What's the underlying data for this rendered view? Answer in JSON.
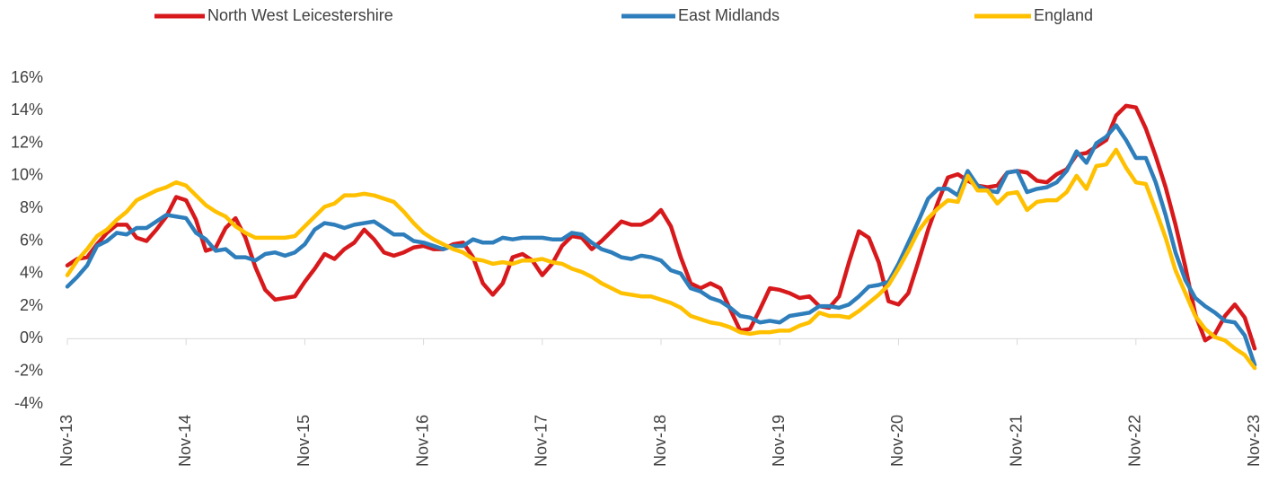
{
  "chart_data": {
    "type": "line",
    "categories": [
      "Nov-13",
      null,
      null,
      null,
      null,
      null,
      null,
      null,
      null,
      null,
      null,
      null,
      "Nov-14",
      null,
      null,
      null,
      null,
      null,
      null,
      null,
      null,
      null,
      null,
      null,
      "Nov-15",
      null,
      null,
      null,
      null,
      null,
      null,
      null,
      null,
      null,
      null,
      null,
      "Nov-16",
      null,
      null,
      null,
      null,
      null,
      null,
      null,
      null,
      null,
      null,
      null,
      "Nov-17",
      null,
      null,
      null,
      null,
      null,
      null,
      null,
      null,
      null,
      null,
      null,
      "Nov-18",
      null,
      null,
      null,
      null,
      null,
      null,
      null,
      null,
      null,
      null,
      null,
      "Nov-19",
      null,
      null,
      null,
      null,
      null,
      null,
      null,
      null,
      null,
      null,
      null,
      "Nov-20",
      null,
      null,
      null,
      null,
      null,
      null,
      null,
      null,
      null,
      null,
      null,
      "Nov-21",
      null,
      null,
      null,
      null,
      null,
      null,
      null,
      null,
      null,
      null,
      null,
      "Nov-22",
      null,
      null,
      null,
      null,
      null,
      null,
      null,
      null,
      null,
      null,
      null,
      "Nov-23"
    ],
    "series": [
      {
        "name": "North West Leicestershire",
        "color": "#d7191c",
        "values": [
          4.5,
          4.9,
          5.0,
          5.8,
          6.5,
          7.0,
          7.0,
          6.2,
          6.0,
          6.7,
          7.5,
          8.7,
          8.5,
          7.3,
          5.4,
          5.6,
          6.8,
          7.4,
          6.2,
          4.4,
          3.0,
          2.4,
          2.5,
          2.6,
          3.5,
          4.3,
          5.2,
          4.9,
          5.5,
          5.9,
          6.7,
          6.1,
          5.3,
          5.1,
          5.3,
          5.6,
          5.7,
          5.5,
          5.5,
          5.8,
          5.9,
          5.0,
          3.4,
          2.7,
          3.4,
          5.0,
          5.2,
          4.8,
          3.9,
          4.6,
          5.7,
          6.3,
          6.2,
          5.5,
          6.0,
          6.6,
          7.2,
          7.0,
          7.0,
          7.3,
          7.9,
          6.9,
          5.0,
          3.4,
          3.1,
          3.4,
          3.1,
          1.8,
          0.5,
          0.6,
          1.8,
          3.1,
          3.0,
          2.8,
          2.5,
          2.6,
          2.0,
          1.9,
          2.6,
          4.7,
          6.6,
          6.2,
          4.7,
          2.3,
          2.1,
          2.8,
          4.7,
          6.7,
          8.4,
          9.9,
          10.1,
          9.7,
          9.4,
          9.3,
          9.4,
          10.2,
          10.3,
          10.2,
          9.7,
          9.6,
          10.1,
          10.4,
          11.3,
          11.4,
          11.8,
          12.2,
          13.7,
          14.3,
          14.2,
          12.9,
          11.2,
          9.3,
          7.0,
          4.4,
          1.5,
          -0.1,
          0.3,
          1.4,
          2.1,
          1.3,
          -0.6
        ]
      },
      {
        "name": "East Midlands",
        "color": "#2e7ebc",
        "values": [
          3.2,
          3.8,
          4.5,
          5.7,
          6.0,
          6.5,
          6.4,
          6.8,
          6.8,
          7.2,
          7.6,
          7.5,
          7.4,
          6.5,
          6.1,
          5.4,
          5.5,
          5.0,
          5.0,
          4.8,
          5.2,
          5.3,
          5.1,
          5.3,
          5.8,
          6.7,
          7.1,
          7.0,
          6.8,
          7.0,
          7.1,
          7.2,
          6.8,
          6.4,
          6.4,
          6.0,
          5.9,
          5.7,
          5.5,
          5.7,
          5.7,
          6.1,
          5.9,
          5.9,
          6.2,
          6.1,
          6.2,
          6.2,
          6.2,
          6.1,
          6.1,
          6.5,
          6.4,
          5.9,
          5.5,
          5.3,
          5.0,
          4.9,
          5.1,
          5.0,
          4.8,
          4.2,
          4.0,
          3.1,
          2.9,
          2.5,
          2.3,
          1.9,
          1.4,
          1.3,
          1.0,
          1.1,
          1.0,
          1.4,
          1.5,
          1.6,
          2.0,
          2.0,
          1.9,
          2.1,
          2.6,
          3.2,
          3.3,
          3.5,
          4.6,
          5.9,
          7.2,
          8.6,
          9.2,
          9.2,
          8.8,
          10.3,
          9.4,
          9.1,
          9.0,
          10.2,
          10.3,
          9.0,
          9.2,
          9.3,
          9.6,
          10.3,
          11.5,
          10.8,
          12.0,
          12.4,
          13.1,
          12.2,
          11.1,
          11.1,
          9.6,
          7.6,
          5.3,
          3.6,
          2.5,
          2.0,
          1.6,
          1.1,
          1.0,
          0.2,
          -1.6
        ]
      },
      {
        "name": "England",
        "color": "#ffc000",
        "values": [
          3.9,
          4.8,
          5.5,
          6.3,
          6.7,
          7.3,
          7.8,
          8.5,
          8.8,
          9.1,
          9.3,
          9.6,
          9.4,
          8.8,
          8.2,
          7.8,
          7.5,
          6.9,
          6.5,
          6.2,
          6.2,
          6.2,
          6.2,
          6.3,
          6.9,
          7.5,
          8.1,
          8.3,
          8.8,
          8.8,
          8.9,
          8.8,
          8.6,
          8.4,
          7.8,
          7.1,
          6.5,
          6.1,
          5.8,
          5.5,
          5.3,
          4.9,
          4.8,
          4.6,
          4.7,
          4.6,
          4.8,
          4.8,
          4.9,
          4.7,
          4.6,
          4.3,
          4.1,
          3.8,
          3.4,
          3.1,
          2.8,
          2.7,
          2.6,
          2.6,
          2.4,
          2.2,
          1.9,
          1.4,
          1.2,
          1.0,
          0.9,
          0.7,
          0.4,
          0.3,
          0.4,
          0.4,
          0.5,
          0.5,
          0.8,
          1.0,
          1.6,
          1.4,
          1.4,
          1.3,
          1.7,
          2.2,
          2.7,
          3.3,
          4.3,
          5.4,
          6.6,
          7.4,
          8.0,
          8.5,
          8.4,
          10.0,
          9.1,
          9.1,
          8.3,
          8.9,
          9.0,
          7.9,
          8.4,
          8.5,
          8.5,
          9.0,
          10.0,
          9.2,
          10.6,
          10.7,
          11.6,
          10.5,
          9.6,
          9.5,
          7.9,
          6.2,
          4.2,
          2.8,
          1.4,
          0.6,
          0.1,
          -0.1,
          -0.6,
          -1.0,
          -1.8
        ]
      }
    ],
    "ylim": [
      -4,
      16
    ],
    "yticks": [
      {
        "value": -4,
        "label": "-4%"
      },
      {
        "value": -2,
        "label": "-2%"
      },
      {
        "value": 0,
        "label": "0%"
      },
      {
        "value": 2,
        "label": "2%"
      },
      {
        "value": 4,
        "label": "4%"
      },
      {
        "value": 6,
        "label": "6%"
      },
      {
        "value": 8,
        "label": "8%"
      },
      {
        "value": 10,
        "label": "10%"
      },
      {
        "value": 12,
        "label": "12%"
      },
      {
        "value": 14,
        "label": "14%"
      },
      {
        "value": 16,
        "label": "16%"
      }
    ],
    "grid": false
  }
}
